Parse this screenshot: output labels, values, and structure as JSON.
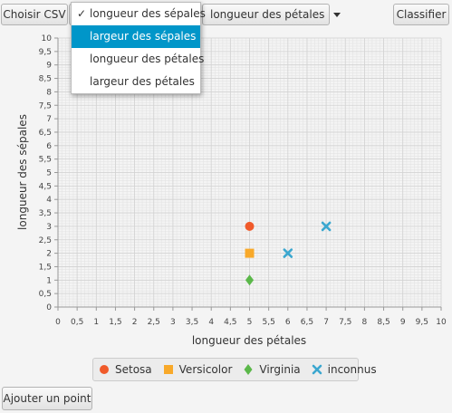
{
  "toolbar": {
    "choose_csv": "Choisir CSV",
    "x_axis_select": "longueur des pétales",
    "classify": "Classifier"
  },
  "dropdown": {
    "items": [
      {
        "label": "longueur des sépales",
        "checked": true
      },
      {
        "label": "largeur des sépales",
        "highlighted": true
      },
      {
        "label": "longueur des pétales"
      },
      {
        "label": "largeur des pétales"
      }
    ],
    "check_mark": "✓"
  },
  "chart_data": {
    "type": "scatter",
    "xlabel": "longueur des pétales",
    "ylabel": "longueur des sépales",
    "xlim": [
      0,
      10
    ],
    "ylim": [
      0,
      10
    ],
    "tick_step": 0.5,
    "grid": true,
    "legend_position": "bottom",
    "series": [
      {
        "name": "Setosa",
        "marker": "circle",
        "color": "#f05a2a",
        "points": [
          [
            5,
            3
          ]
        ]
      },
      {
        "name": "Versicolor",
        "marker": "square",
        "color": "#f8a92a",
        "points": [
          [
            5,
            2
          ]
        ]
      },
      {
        "name": "Virginia",
        "marker": "diamond",
        "color": "#5bb84a",
        "points": [
          [
            5,
            1
          ]
        ]
      },
      {
        "name": "inconnus",
        "marker": "cross",
        "color": "#3ba7cf",
        "points": [
          [
            7,
            3
          ],
          [
            6,
            2
          ]
        ]
      }
    ]
  },
  "footer": {
    "add_point": "Ajouter un point"
  }
}
